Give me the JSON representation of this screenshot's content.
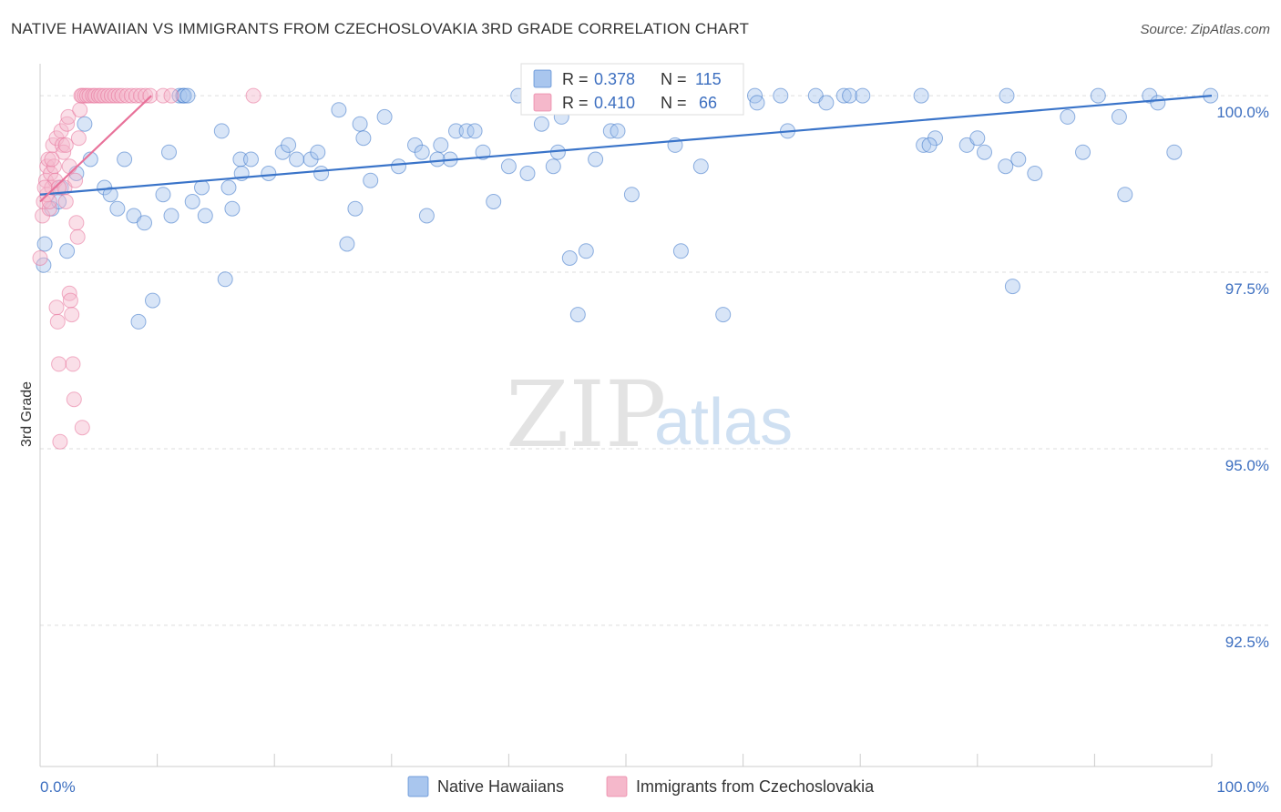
{
  "header": {
    "title": "NATIVE HAWAIIAN VS IMMIGRANTS FROM CZECHOSLOVAKIA 3RD GRADE CORRELATION CHART",
    "source": "Source: ZipAtlas.com"
  },
  "watermark": {
    "zip": "ZIP",
    "atlas": "atlas"
  },
  "colors": {
    "blue": "#3a74c9",
    "blue_fill": "#a9c6ee",
    "pink": "#e8729a",
    "pink_fill": "#f5b8cb",
    "tick_text": "#3d6fc0",
    "grid": "#dddddd"
  },
  "chart_data": {
    "type": "scatter",
    "title": "NATIVE HAWAIIAN VS IMMIGRANTS FROM CZECHOSLOVAKIA 3RD GRADE CORRELATION CHART",
    "xlabel": "",
    "ylabel": "3rd Grade",
    "xlim": [
      0,
      100
    ],
    "ylim": [
      90.5,
      100.35
    ],
    "x_ticks": [
      0,
      10,
      20,
      30,
      40,
      50,
      60,
      70,
      80,
      90,
      100
    ],
    "x_tick_labels": {
      "left": "0.0%",
      "right": "100.0%"
    },
    "y_ticks": [
      92.5,
      95.0,
      97.5,
      100.0
    ],
    "y_tick_labels": [
      "92.5%",
      "95.0%",
      "97.5%",
      "100.0%"
    ],
    "grid": true,
    "legend_position": "bottom-center",
    "series": [
      {
        "name": "Native Hawaiians",
        "color": "blue",
        "R": "0.378",
        "N": "115",
        "trend": {
          "x": [
            0,
            100
          ],
          "y": [
            98.6,
            100.0
          ]
        },
        "points": [
          [
            0.3,
            97.6
          ],
          [
            0.4,
            97.9
          ],
          [
            1.0,
            98.4
          ],
          [
            1.6,
            98.5
          ],
          [
            1.8,
            98.7
          ],
          [
            2.3,
            97.8
          ],
          [
            3.1,
            98.9
          ],
          [
            3.8,
            99.6
          ],
          [
            4.3,
            99.1
          ],
          [
            5.5,
            98.7
          ],
          [
            6.0,
            98.6
          ],
          [
            7.2,
            99.1
          ],
          [
            8.0,
            98.3
          ],
          [
            8.4,
            96.8
          ],
          [
            8.9,
            98.2
          ],
          [
            9.6,
            97.1
          ],
          [
            10.5,
            98.6
          ],
          [
            11.0,
            99.2
          ],
          [
            11.2,
            98.3
          ],
          [
            11.9,
            100.0
          ],
          [
            12.2,
            100.0
          ],
          [
            12.3,
            100.0
          ],
          [
            12.6,
            100.0
          ],
          [
            13.0,
            98.5
          ],
          [
            14.1,
            98.3
          ],
          [
            15.5,
            99.5
          ],
          [
            15.8,
            97.4
          ],
          [
            16.1,
            98.7
          ],
          [
            16.4,
            98.4
          ],
          [
            17.1,
            99.1
          ],
          [
            17.2,
            98.9
          ],
          [
            18.0,
            99.1
          ],
          [
            20.7,
            99.2
          ],
          [
            21.2,
            99.3
          ],
          [
            21.9,
            99.1
          ],
          [
            23.1,
            99.1
          ],
          [
            23.7,
            99.2
          ],
          [
            24.0,
            98.9
          ],
          [
            25.5,
            99.8
          ],
          [
            26.2,
            97.9
          ],
          [
            26.9,
            98.4
          ],
          [
            27.3,
            99.6
          ],
          [
            27.6,
            99.4
          ],
          [
            28.2,
            98.8
          ],
          [
            29.4,
            99.7
          ],
          [
            30.6,
            99.0
          ],
          [
            32.0,
            99.3
          ],
          [
            32.6,
            99.2
          ],
          [
            33.0,
            98.3
          ],
          [
            34.2,
            99.3
          ],
          [
            35.0,
            99.1
          ],
          [
            35.5,
            99.5
          ],
          [
            36.4,
            99.5
          ],
          [
            37.8,
            99.2
          ],
          [
            38.7,
            98.5
          ],
          [
            40.0,
            99.0
          ],
          [
            40.8,
            100.0
          ],
          [
            41.6,
            98.9
          ],
          [
            42.8,
            99.6
          ],
          [
            43.8,
            99.0
          ],
          [
            44.2,
            99.2
          ],
          [
            45.2,
            97.7
          ],
          [
            45.9,
            96.9
          ],
          [
            46.6,
            97.8
          ],
          [
            47.4,
            99.1
          ],
          [
            48.2,
            100.0
          ],
          [
            48.7,
            99.5
          ],
          [
            49.3,
            99.5
          ],
          [
            50.3,
            100.0
          ],
          [
            50.5,
            98.6
          ],
          [
            51.6,
            100.0
          ],
          [
            52.0,
            100.0
          ],
          [
            53.0,
            100.0
          ],
          [
            53.9,
            100.0
          ],
          [
            54.2,
            99.3
          ],
          [
            54.7,
            97.8
          ],
          [
            56.4,
            99.0
          ],
          [
            58.3,
            96.9
          ],
          [
            61.0,
            100.0
          ],
          [
            61.2,
            99.9
          ],
          [
            63.2,
            100.0
          ],
          [
            66.2,
            100.0
          ],
          [
            67.1,
            99.9
          ],
          [
            68.6,
            100.0
          ],
          [
            69.1,
            100.0
          ],
          [
            70.2,
            100.0
          ],
          [
            75.2,
            100.0
          ],
          [
            75.4,
            99.3
          ],
          [
            76.4,
            99.4
          ],
          [
            79.1,
            99.3
          ],
          [
            80.0,
            99.4
          ],
          [
            80.6,
            99.2
          ],
          [
            82.4,
            99.0
          ],
          [
            82.5,
            100.0
          ],
          [
            83.0,
            97.3
          ],
          [
            83.5,
            99.1
          ],
          [
            84.9,
            98.9
          ],
          [
            87.7,
            99.7
          ],
          [
            89.0,
            99.2
          ],
          [
            90.3,
            100.0
          ],
          [
            92.1,
            99.7
          ],
          [
            94.7,
            100.0
          ],
          [
            95.4,
            99.9
          ],
          [
            96.8,
            99.2
          ],
          [
            92.6,
            98.6
          ],
          [
            99.9,
            100.0
          ],
          [
            75.9,
            99.3
          ],
          [
            63.8,
            99.5
          ],
          [
            55.6,
            100.0
          ],
          [
            44.5,
            99.7
          ],
          [
            33.9,
            99.1
          ],
          [
            37.1,
            99.5
          ],
          [
            19.5,
            98.9
          ],
          [
            13.8,
            98.7
          ],
          [
            6.6,
            98.4
          ]
        ]
      },
      {
        "name": "Immigrants from Czechoslovakia",
        "color": "pink",
        "R": "0.410",
        "N": "66",
        "trend": {
          "x": [
            0,
            9.5
          ],
          "y": [
            98.5,
            100.0
          ]
        },
        "points": [
          [
            0.0,
            97.7
          ],
          [
            0.2,
            98.3
          ],
          [
            0.3,
            98.5
          ],
          [
            0.5,
            98.8
          ],
          [
            0.6,
            98.6
          ],
          [
            0.6,
            99.0
          ],
          [
            0.7,
            99.1
          ],
          [
            0.8,
            98.4
          ],
          [
            0.9,
            98.9
          ],
          [
            1.0,
            98.7
          ],
          [
            1.1,
            99.3
          ],
          [
            1.2,
            99.0
          ],
          [
            1.3,
            98.8
          ],
          [
            1.4,
            99.4
          ],
          [
            1.4,
            97.0
          ],
          [
            1.5,
            96.8
          ],
          [
            1.6,
            96.2
          ],
          [
            1.7,
            95.1
          ],
          [
            1.8,
            99.5
          ],
          [
            1.9,
            99.3
          ],
          [
            2.0,
            99.2
          ],
          [
            2.1,
            98.7
          ],
          [
            2.2,
            98.5
          ],
          [
            2.3,
            99.6
          ],
          [
            2.4,
            99.7
          ],
          [
            2.5,
            97.2
          ],
          [
            2.6,
            97.1
          ],
          [
            2.7,
            96.9
          ],
          [
            2.8,
            96.2
          ],
          [
            2.9,
            95.7
          ],
          [
            3.0,
            98.8
          ],
          [
            3.1,
            98.2
          ],
          [
            3.2,
            98.0
          ],
          [
            3.3,
            99.4
          ],
          [
            3.4,
            99.8
          ],
          [
            3.5,
            100.0
          ],
          [
            3.6,
            100.0
          ],
          [
            3.8,
            100.0
          ],
          [
            4.0,
            100.0
          ],
          [
            4.2,
            100.0
          ],
          [
            4.5,
            100.0
          ],
          [
            4.7,
            100.0
          ],
          [
            5.0,
            100.0
          ],
          [
            5.2,
            100.0
          ],
          [
            5.5,
            100.0
          ],
          [
            5.8,
            100.0
          ],
          [
            6.1,
            100.0
          ],
          [
            6.4,
            100.0
          ],
          [
            6.7,
            100.0
          ],
          [
            7.0,
            100.0
          ],
          [
            7.4,
            100.0
          ],
          [
            7.8,
            100.0
          ],
          [
            8.2,
            100.0
          ],
          [
            8.6,
            100.0
          ],
          [
            9.0,
            100.0
          ],
          [
            9.4,
            100.0
          ],
          [
            10.5,
            100.0
          ],
          [
            11.2,
            100.0
          ],
          [
            18.2,
            100.0
          ],
          [
            0.4,
            98.7
          ],
          [
            1.0,
            99.1
          ],
          [
            2.2,
            99.3
          ],
          [
            3.6,
            95.3
          ],
          [
            2.5,
            99.0
          ],
          [
            1.6,
            98.7
          ],
          [
            0.8,
            98.5
          ]
        ]
      }
    ]
  },
  "legend": {
    "items": [
      {
        "label": "Native Hawaiians",
        "color": "blue"
      },
      {
        "label": "Immigrants from Czechoslovakia",
        "color": "pink"
      }
    ],
    "stats": {
      "r_label": "R = ",
      "n_label": "N = ",
      "rows": [
        {
          "r": "0.378",
          "n": "115",
          "color": "blue"
        },
        {
          "r": "0.410",
          "n": "66",
          "color": "pink"
        }
      ]
    }
  }
}
